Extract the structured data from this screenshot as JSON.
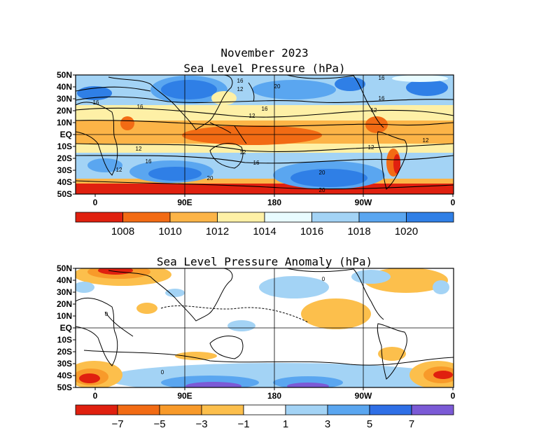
{
  "header": {
    "title_line1": "November 2023",
    "title_line2": "Sea Level Pressure (hPa)"
  },
  "panel_top": {
    "lat_labels": [
      "50N",
      "40N",
      "30N",
      "20N",
      "10N",
      "EQ",
      "10S",
      "20S",
      "30S",
      "40S",
      "50S"
    ],
    "lon_labels": [
      "0",
      "90E",
      "180",
      "90W",
      "0"
    ],
    "contour_labels": [
      "16",
      "16",
      "12",
      "16",
      "20",
      "16",
      "16",
      "12",
      "16",
      "12",
      "12",
      "12",
      "12",
      "16",
      "20",
      "20",
      "20",
      "16",
      "12",
      "12"
    ],
    "colorbar": {
      "colors": [
        "#e0200f",
        "#f26b14",
        "#fcb447",
        "#fef0a6",
        "#e8fbff",
        "#a3d3f5",
        "#5aa6f0",
        "#2f7fe6"
      ],
      "labels": [
        "1008",
        "1010",
        "1012",
        "1014",
        "1016",
        "1018",
        "1020"
      ]
    }
  },
  "panel_bottom": {
    "title": "Sea Level Pressure Anomaly (hPa)",
    "lat_labels": [
      "50N",
      "40N",
      "30N",
      "20N",
      "10N",
      "EQ",
      "10S",
      "20S",
      "30S",
      "40S",
      "50S"
    ],
    "lon_labels": [
      "0",
      "90E",
      "180",
      "90W",
      "0"
    ],
    "contour_labels": [
      "0",
      "0",
      "0"
    ],
    "colorbar": {
      "colors": [
        "#e0200f",
        "#f26b14",
        "#f89a2a",
        "#fcbf4c",
        "#ffffff",
        "#a3d3f5",
        "#5aa6f0",
        "#2f6fe6",
        "#7b5ad6"
      ],
      "labels": [
        "−7",
        "−5",
        "−3",
        "−1",
        "1",
        "3",
        "5",
        "7"
      ]
    }
  },
  "colors": {
    "high": "#2f7fe6",
    "low": "#e0200f",
    "land_outline": "#000000"
  }
}
